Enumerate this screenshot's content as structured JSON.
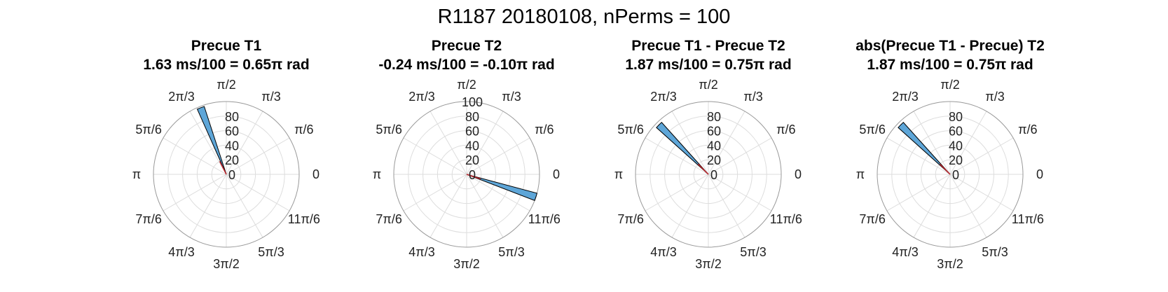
{
  "figure": {
    "title": "R1187 20180108, nPerms = 100"
  },
  "theta_tick_labels": [
    "0",
    "π/6",
    "π/3",
    "π/2",
    "2π/3",
    "5π/6",
    "π",
    "7π/6",
    "4π/3",
    "3π/2",
    "5π/3",
    "11π/6"
  ],
  "colors": {
    "bar_fill": "#5ea6d8",
    "bar_edge": "#000000",
    "mean_line": "#c0262d",
    "grid": "#dddddd",
    "outer_circle": "#999999"
  },
  "chart_data": [
    {
      "type": "polar-histogram",
      "title": "Precue T1",
      "subtitle": "1.63 ms/100 = 0.65π rad",
      "r_ticks": [
        "0",
        "20",
        "40",
        "60",
        "80"
      ],
      "rlim": [
        0,
        100
      ],
      "bars": [
        {
          "theta_start_rad": 1.885,
          "theta_end_rad": 1.99,
          "count": 98
        }
      ],
      "mean_angle_rad": 2.042
    },
    {
      "type": "polar-histogram",
      "title": "Precue T2",
      "subtitle": "-0.24 ms/100 = -0.10π rad",
      "r_ticks": [
        "0",
        "20",
        "40",
        "60",
        "80",
        "100"
      ],
      "rlim": [
        0,
        100
      ],
      "bars": [
        {
          "theta_start_rad": -0.367,
          "theta_end_rad": -0.262,
          "count": 100
        }
      ],
      "mean_angle_rad": -0.314
    },
    {
      "type": "polar-histogram",
      "title": "Precue T1 - Precue T2",
      "subtitle": "1.87 ms/100 = 0.75π rad",
      "r_ticks": [
        "0",
        "20",
        "40",
        "60",
        "80"
      ],
      "rlim": [
        0,
        100
      ],
      "bars": [
        {
          "theta_start_rad": 2.303,
          "theta_end_rad": 2.408,
          "count": 96
        }
      ],
      "mean_angle_rad": 2.356
    },
    {
      "type": "polar-histogram",
      "title": "abs(Precue T1 - Precue) T2",
      "subtitle": "1.87 ms/100 = 0.75π rad",
      "r_ticks": [
        "0",
        "20",
        "40",
        "60",
        "80"
      ],
      "rlim": [
        0,
        100
      ],
      "bars": [
        {
          "theta_start_rad": 2.303,
          "theta_end_rad": 2.408,
          "count": 96
        }
      ],
      "mean_angle_rad": 2.356
    }
  ]
}
